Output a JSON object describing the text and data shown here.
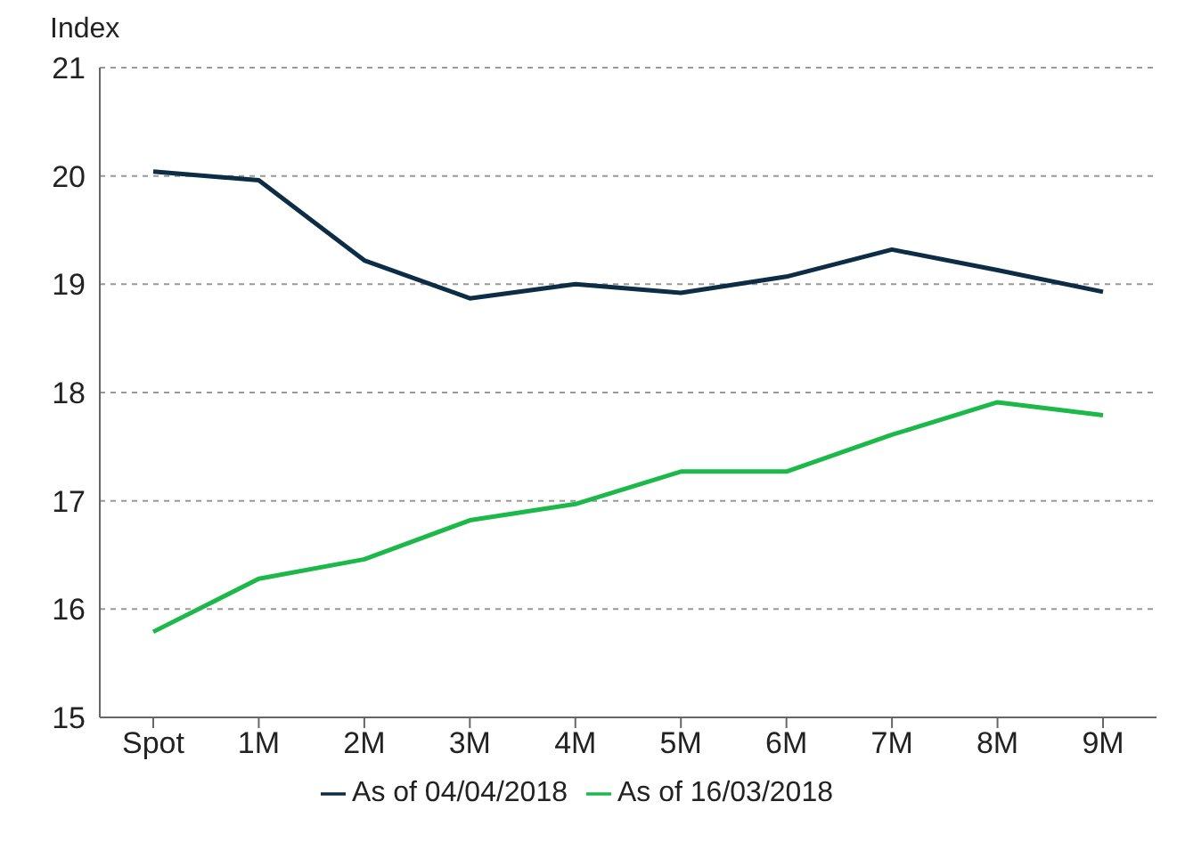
{
  "chart_data": {
    "type": "line",
    "ylabel": "Index",
    "categories": [
      "Spot",
      "1M",
      "2M",
      "3M",
      "4M",
      "5M",
      "6M",
      "7M",
      "8M",
      "9M"
    ],
    "series": [
      {
        "name": "As of 04/04/2018",
        "color": "#0d2c45",
        "values": [
          20.04,
          19.96,
          19.22,
          18.87,
          19.0,
          18.92,
          19.07,
          19.32,
          19.13,
          18.93
        ]
      },
      {
        "name": "As of 16/03/2018",
        "color": "#1db84a",
        "values": [
          15.79,
          16.28,
          16.46,
          16.82,
          16.97,
          17.27,
          17.27,
          17.61,
          17.91,
          17.79
        ]
      }
    ],
    "ylim": [
      15,
      21
    ],
    "yticks": [
      15,
      16,
      17,
      18,
      19,
      20,
      21
    ],
    "grid": "y",
    "legend": "bottom",
    "marker": "none",
    "line_style": "solid"
  }
}
